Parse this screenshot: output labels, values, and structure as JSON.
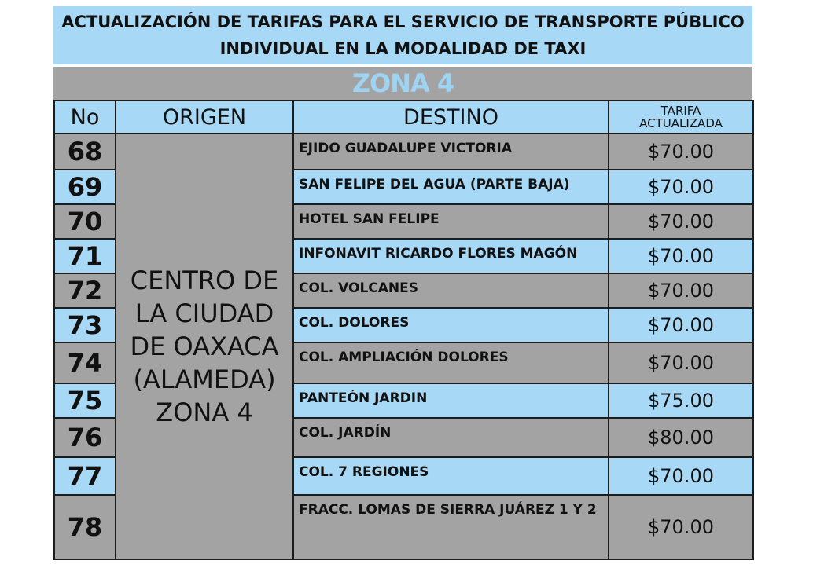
{
  "title": {
    "line1": "ACTUALIZACIÓN DE TARIFAS PARA EL SERVICIO DE TRANSPORTE PÚBLICO",
    "line2": "INDIVIDUAL EN LA MODALIDAD DE TAXI"
  },
  "zone": "ZONA 4",
  "headers": {
    "no": "No",
    "origen": "ORIGEN",
    "destino": "DESTINO",
    "tarifa_line1": "TARIFA",
    "tarifa_line2": "ACTUALIZADA"
  },
  "origin": [
    "CENTRO DE",
    "LA CIUDAD",
    "DE OAXACA",
    "(ALAMEDA)",
    "ZONA 4"
  ],
  "rows": [
    {
      "no": "68",
      "destino": "EJIDO GUADALUPE VICTORIA",
      "tarifa": "$70.00"
    },
    {
      "no": "69",
      "destino": "SAN FELIPE DEL AGUA (PARTE BAJA)",
      "tarifa": "$70.00"
    },
    {
      "no": "70",
      "destino": "HOTEL SAN FELIPE",
      "tarifa": "$70.00"
    },
    {
      "no": "71",
      "destino": "INFONAVIT RICARDO FLORES MAGÓN",
      "tarifa": "$70.00"
    },
    {
      "no": "72",
      "destino": "COL. VOLCANES",
      "tarifa": "$70.00"
    },
    {
      "no": "73",
      "destino": "COL. DOLORES",
      "tarifa": "$70.00"
    },
    {
      "no": "74",
      "destino": "COL. AMPLIACIÓN DOLORES",
      "tarifa": "$70.00"
    },
    {
      "no": "75",
      "destino": "PANTEÓN JARDIN",
      "tarifa": "$75.00"
    },
    {
      "no": "76",
      "destino": "COL. JARDÍN",
      "tarifa": "$80.00"
    },
    {
      "no": "77",
      "destino": "COL. 7 REGIONES",
      "tarifa": "$70.00"
    },
    {
      "no": "78",
      "destino": "FRACC. LOMAS DE SIERRA JUÁREZ 1 Y 2",
      "tarifa": "$70.00"
    }
  ]
}
